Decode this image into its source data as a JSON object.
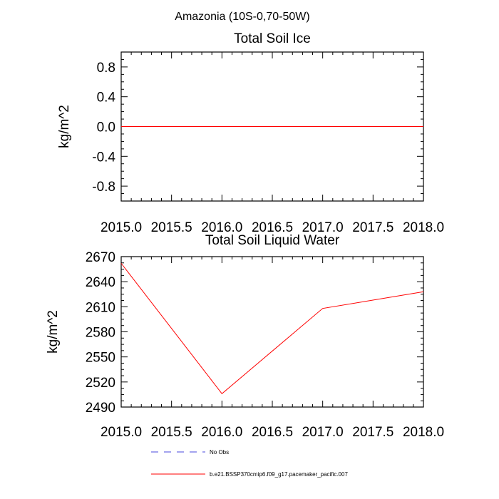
{
  "figure_title": "Amazonia (10S-0,70-50W)",
  "legend": [
    {
      "label": "No Obs",
      "color": "#4a4adc",
      "dash": true
    },
    {
      "label": "b.e21.BSSP370cmip6.f09_g17.pacemaker_pacific.007",
      "color": "#ff0000",
      "dash": false
    }
  ],
  "chart_data": [
    {
      "type": "line",
      "title": "Total Soil Ice",
      "xlabel": "",
      "ylabel": "kg/m^2",
      "xlim": [
        2015.0,
        2018.0
      ],
      "ylim": [
        -1.0,
        1.0
      ],
      "xticks": [
        2015.0,
        2015.5,
        2016.0,
        2016.5,
        2017.0,
        2017.5,
        2018.0
      ],
      "xtick_labels": [
        "2015.0",
        "2015.5",
        "2016.0",
        "2016.5",
        "2017.0",
        "2017.5",
        "2018.0"
      ],
      "yticks": [
        0.8,
        0.4,
        0.0,
        -0.4,
        -0.8
      ],
      "ytick_labels": [
        "0.8",
        "0.4",
        "0.0",
        "-0.4",
        "-0.8"
      ],
      "grid": false,
      "series": [
        {
          "color": "#ff0000",
          "x": [
            2015,
            2016,
            2017,
            2018
          ],
          "y": [
            0.0,
            0.0,
            0.0,
            0.0
          ]
        }
      ]
    },
    {
      "type": "line",
      "title": "Total Soil Liquid Water",
      "xlabel": "",
      "ylabel": "kg/m^2",
      "xlim": [
        2015.0,
        2018.0
      ],
      "ylim": [
        2490,
        2670
      ],
      "xticks": [
        2015.0,
        2015.5,
        2016.0,
        2016.5,
        2017.0,
        2017.5,
        2018.0
      ],
      "xtick_labels": [
        "2015.0",
        "2015.5",
        "2016.0",
        "2016.5",
        "2017.0",
        "2017.5",
        "2018.0"
      ],
      "yticks": [
        2670,
        2640,
        2610,
        2580,
        2550,
        2520,
        2490
      ],
      "ytick_labels": [
        "2670",
        "2640",
        "2610",
        "2580",
        "2550",
        "2520",
        "2490"
      ],
      "grid": false,
      "series": [
        {
          "color": "#ff0000",
          "x": [
            2015,
            2016,
            2017,
            2018
          ],
          "y": [
            2662,
            2506,
            2608,
            2628
          ]
        }
      ]
    }
  ]
}
